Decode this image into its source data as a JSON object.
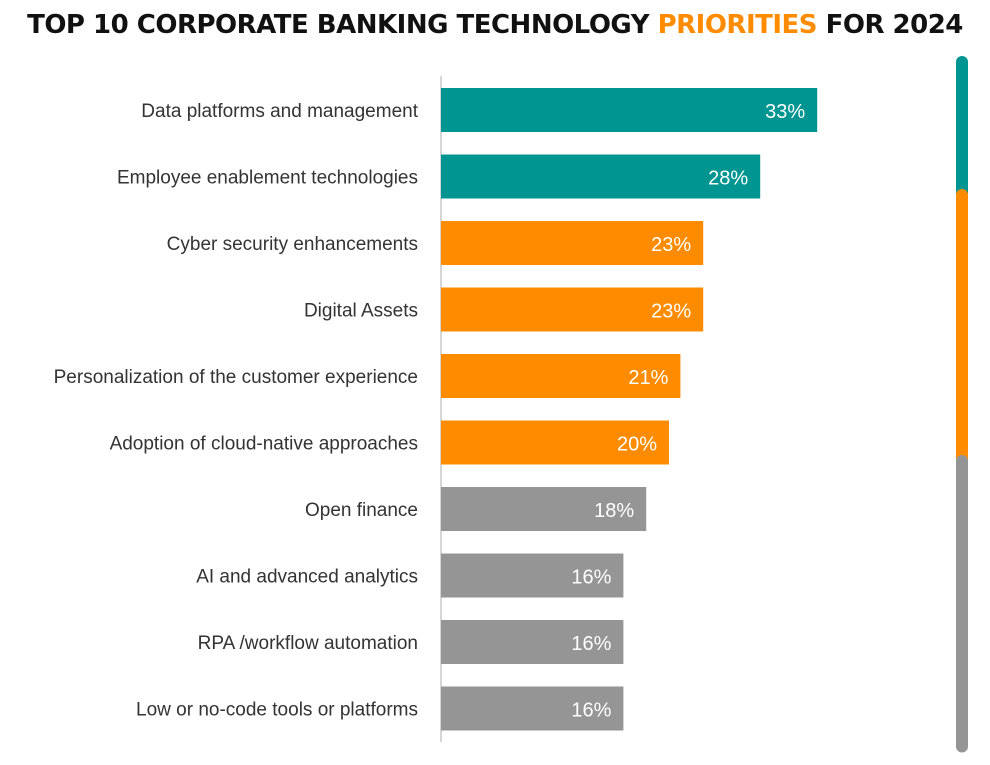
{
  "title": {
    "part1": "TOP 10 CORPORATE BANKING TECHNOLOGY ",
    "highlight": "PRIORITIES",
    "part2": " FOR 2024"
  },
  "colors": {
    "teal": "#009590",
    "orange": "#FF8C00",
    "gray": "#959595",
    "axis": "#c8c8c8",
    "title_highlight": "#FF8C00"
  },
  "chart_data": {
    "type": "bar",
    "orientation": "horizontal",
    "categories": [
      "Data platforms and management",
      "Employee enablement technologies",
      "Cyber security enhancements",
      "Digital Assets",
      "Personalization of the customer experience",
      "Adoption of cloud-native approaches",
      "Open finance",
      "AI and advanced analytics",
      "RPA /workflow automation",
      "Low or no-code tools or platforms"
    ],
    "values": [
      33,
      28,
      23,
      23,
      21,
      20,
      18,
      16,
      16,
      16
    ],
    "value_labels": [
      "33%",
      "28%",
      "23%",
      "23%",
      "21%",
      "20%",
      "18%",
      "16%",
      "16%",
      "16%"
    ],
    "bar_colors": [
      "teal",
      "teal",
      "orange",
      "orange",
      "orange",
      "orange",
      "gray",
      "gray",
      "gray",
      "gray"
    ],
    "group_brackets": [
      {
        "color": "teal",
        "from": 0,
        "to": 1
      },
      {
        "color": "orange",
        "from": 2,
        "to": 5
      },
      {
        "color": "gray",
        "from": 6,
        "to": 9
      }
    ],
    "xlim": [
      0,
      48
    ],
    "grid": false,
    "legend": "none"
  }
}
